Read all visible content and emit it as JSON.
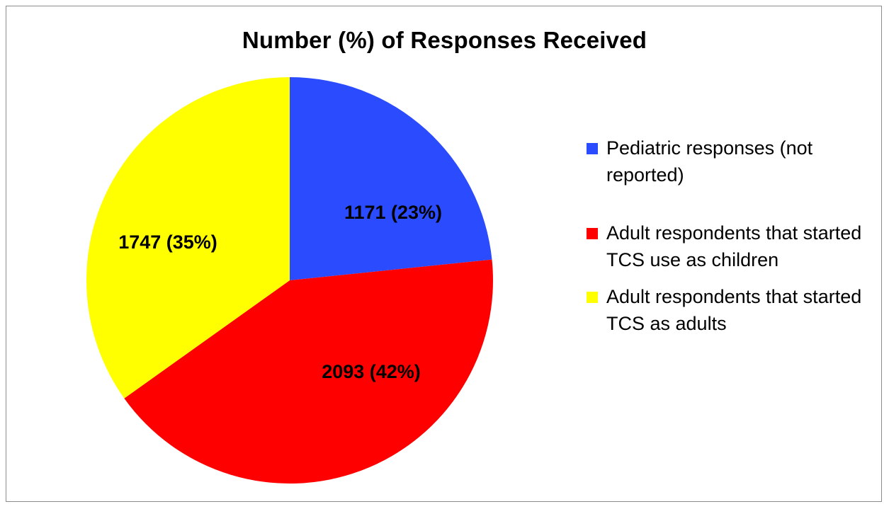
{
  "chart_data": {
    "type": "pie",
    "title": "Number (%) of Responses Received",
    "legend_position": "right",
    "slices": [
      {
        "name": "Pediatric responses (not reported)",
        "value": 1171,
        "percent": 23,
        "label": "1171 (23%)",
        "color": "#2b4bff"
      },
      {
        "name": "Adult respondents that started TCS use as children",
        "value": 2093,
        "percent": 42,
        "label": "2093 (42%)",
        "color": "#ff0000"
      },
      {
        "name": "Adult respondents that started TCS as adults",
        "value": 1747,
        "percent": 35,
        "label": "1747 (35%)",
        "color": "#ffff00"
      }
    ]
  }
}
